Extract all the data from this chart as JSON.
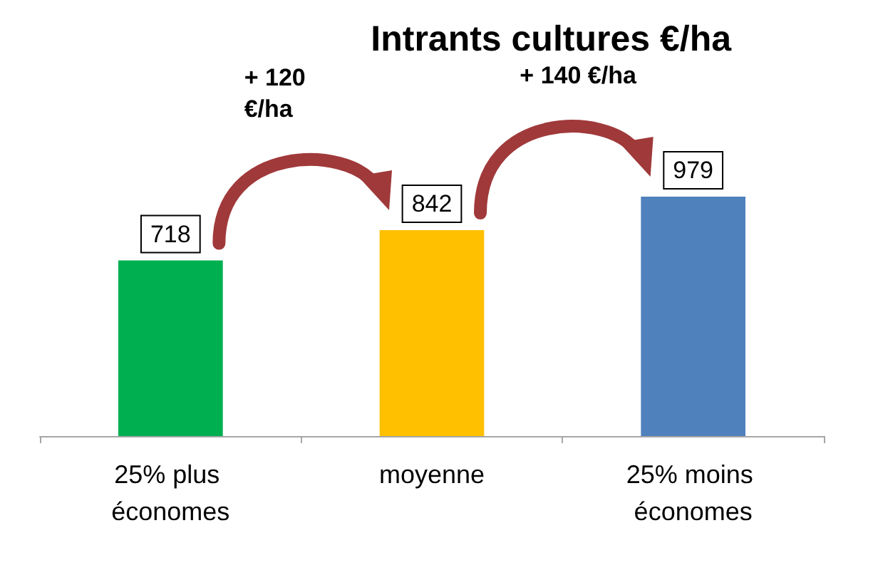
{
  "chart_data": {
    "type": "bar",
    "title": "Intrants cultures €/ha",
    "categories": [
      "25% plus économes",
      "moyenne",
      "25% moins économes"
    ],
    "values": [
      718,
      842,
      979
    ],
    "colors": [
      "#00b050",
      "#ffc000",
      "#4f81bd"
    ],
    "data_labels": true,
    "grid": false,
    "annotations": [
      "+ 120 €/ha",
      "+ 140 €/ha"
    ]
  }
}
